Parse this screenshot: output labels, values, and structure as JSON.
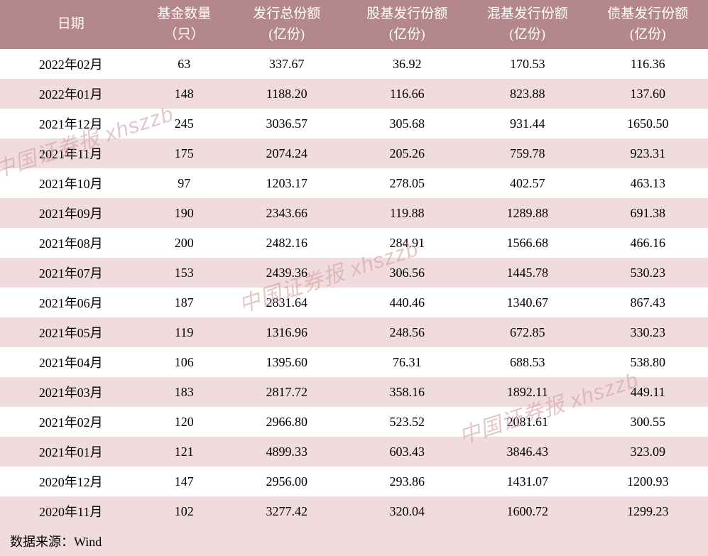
{
  "table": {
    "header_bg": "#b4878a",
    "header_text_color": "#ffffff",
    "row_odd_bg": "#ffffff",
    "row_even_bg": "#f0dcdd",
    "text_color": "#000000",
    "header_fontsize": 19,
    "cell_fontsize": 18,
    "columns": [
      {
        "key": "date",
        "label_line1": "日期",
        "label_line2": "",
        "width": "20%"
      },
      {
        "key": "count",
        "label_line1": "基金数量",
        "label_line2": "（只）",
        "width": "12%"
      },
      {
        "key": "total",
        "label_line1": "发行总份额",
        "label_line2": "(亿份)",
        "width": "17%"
      },
      {
        "key": "stock",
        "label_line1": "股基发行份额",
        "label_line2": "(亿份)",
        "width": "17%"
      },
      {
        "key": "mixed",
        "label_line1": "混基发行份额",
        "label_line2": "(亿份)",
        "width": "17%"
      },
      {
        "key": "bond",
        "label_line1": "债基发行份额",
        "label_line2": "(亿份)",
        "width": "17%"
      }
    ],
    "rows": [
      {
        "date": "2022年02月",
        "count": "63",
        "total": "337.67",
        "stock": "36.92",
        "mixed": "170.53",
        "bond": "116.36"
      },
      {
        "date": "2022年01月",
        "count": "148",
        "total": "1188.20",
        "stock": "116.66",
        "mixed": "823.88",
        "bond": "137.60"
      },
      {
        "date": "2021年12月",
        "count": "245",
        "total": "3036.57",
        "stock": "305.68",
        "mixed": "931.44",
        "bond": "1650.50"
      },
      {
        "date": "2021年11月",
        "count": "175",
        "total": "2074.24",
        "stock": "205.26",
        "mixed": "759.78",
        "bond": "923.31"
      },
      {
        "date": "2021年10月",
        "count": "97",
        "total": "1203.17",
        "stock": "278.05",
        "mixed": "402.57",
        "bond": "463.13"
      },
      {
        "date": "2021年09月",
        "count": "190",
        "total": "2343.66",
        "stock": "119.88",
        "mixed": "1289.88",
        "bond": "691.38"
      },
      {
        "date": "2021年08月",
        "count": "200",
        "total": "2482.16",
        "stock": "284.91",
        "mixed": "1566.68",
        "bond": "466.16"
      },
      {
        "date": "2021年07月",
        "count": "153",
        "total": "2439.36",
        "stock": "306.56",
        "mixed": "1445.78",
        "bond": "530.23"
      },
      {
        "date": "2021年06月",
        "count": "187",
        "total": "2831.64",
        "stock": "440.46",
        "mixed": "1340.67",
        "bond": "867.43"
      },
      {
        "date": "2021年05月",
        "count": "119",
        "total": "1316.96",
        "stock": "248.56",
        "mixed": "672.85",
        "bond": "330.23"
      },
      {
        "date": "2021年04月",
        "count": "106",
        "total": "1395.60",
        "stock": "76.31",
        "mixed": "688.53",
        "bond": "538.80"
      },
      {
        "date": "2021年03月",
        "count": "183",
        "total": "2817.72",
        "stock": "358.16",
        "mixed": "1892.11",
        "bond": "449.11"
      },
      {
        "date": "2021年02月",
        "count": "120",
        "total": "2966.80",
        "stock": "523.52",
        "mixed": "2081.61",
        "bond": "300.55"
      },
      {
        "date": "2021年01月",
        "count": "121",
        "total": "4899.33",
        "stock": "603.43",
        "mixed": "3846.43",
        "bond": "323.09"
      },
      {
        "date": "2020年12月",
        "count": "147",
        "total": "2956.00",
        "stock": "293.86",
        "mixed": "1431.07",
        "bond": "1200.93"
      },
      {
        "date": "2020年11月",
        "count": "102",
        "total": "3277.42",
        "stock": "320.04",
        "mixed": "1600.72",
        "bond": "1299.23"
      }
    ],
    "footer": "数据来源：Wind"
  },
  "watermark": {
    "text": "中国证券报 xhszzb",
    "color": "rgba(210, 160, 165, 0.6)",
    "fontsize": 30,
    "rotation": -18
  }
}
